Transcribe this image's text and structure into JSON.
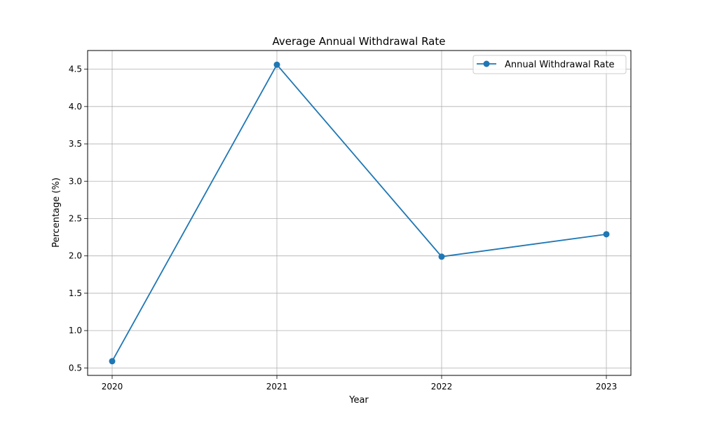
{
  "chart_data": {
    "type": "line",
    "title": "Average Annual Withdrawal Rate",
    "xlabel": "Year",
    "ylabel": "Percentage (%)",
    "x": [
      "2020",
      "2021",
      "2022",
      "2023"
    ],
    "series": [
      {
        "name": "Annual Withdrawal Rate",
        "values": [
          0.59,
          4.56,
          1.99,
          2.29
        ]
      }
    ],
    "ylim": [
      0.4,
      4.75
    ],
    "yticks": [
      "0.5",
      "1.0",
      "1.5",
      "2.0",
      "2.5",
      "3.0",
      "3.5",
      "4.0",
      "4.5"
    ],
    "grid": true,
    "legend_position": "top-right",
    "marker": "circle",
    "colors": {
      "series": "#1f77b4",
      "grid": "#b0b0b0",
      "axes": "#000000"
    }
  }
}
